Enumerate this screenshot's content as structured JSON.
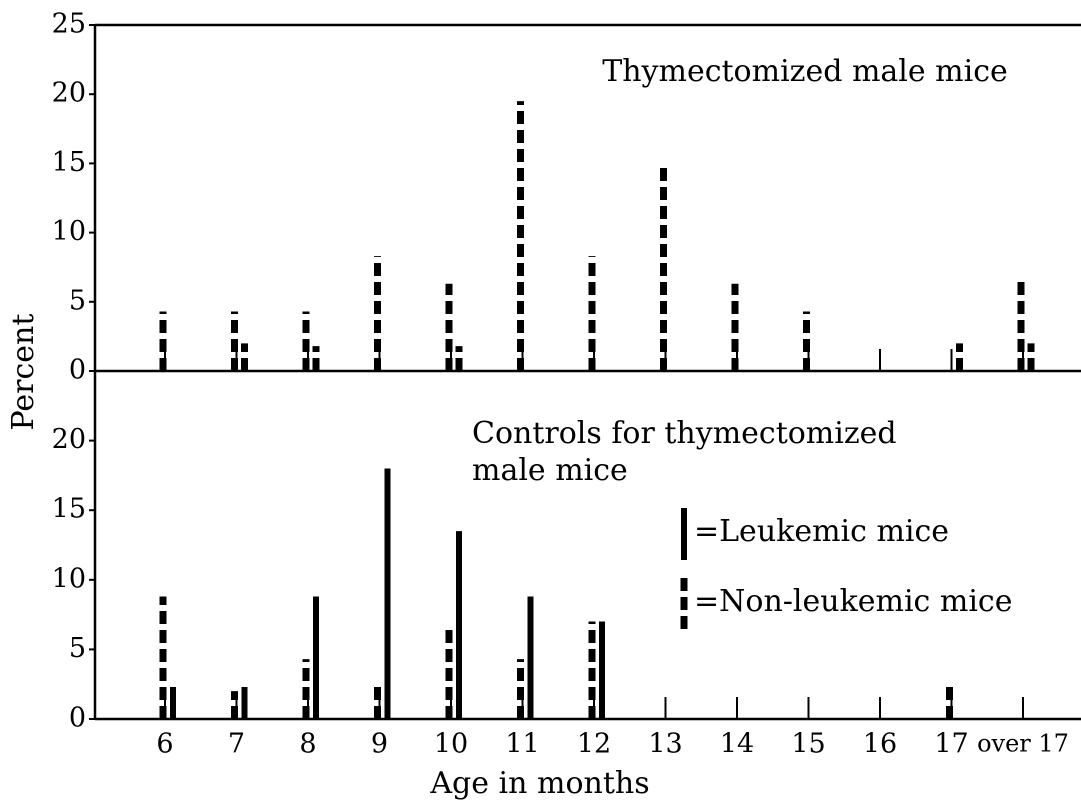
{
  "chart_data": [
    {
      "type": "bar",
      "title": "Thymectomized male mice",
      "ylim": [
        0,
        25
      ],
      "yticks": [
        0,
        5,
        10,
        15,
        20,
        25
      ],
      "series": [
        {
          "style": "dashed",
          "color": "#000000",
          "values": [
            4.3,
            4.3,
            4.3,
            8.3,
            6.3,
            19.5,
            8.3,
            15,
            6.3,
            4.3,
            null,
            null,
            6.5
          ]
        },
        {
          "style": "dashed",
          "color": "#000000",
          "values": [
            null,
            2,
            1.8,
            null,
            1.8,
            null,
            null,
            null,
            null,
            null,
            null,
            2,
            2
          ]
        }
      ]
    },
    {
      "type": "bar",
      "title": [
        "Controls for thymectomized",
        "male mice"
      ],
      "x_label": "Age in months",
      "y_label": "Percent",
      "categories": [
        "6",
        "7",
        "8",
        "9",
        "10",
        "11",
        "12",
        "13",
        "14",
        "15",
        "16",
        "17",
        "over 17"
      ],
      "ylim": [
        0,
        25
      ],
      "yticks": [
        0,
        5,
        10,
        15,
        20
      ],
      "series": [
        {
          "name": "=Non-leukemic mice",
          "style": "dashed",
          "color": "#000000",
          "values": [
            8.8,
            2,
            4.3,
            2.3,
            6.8,
            4.3,
            7,
            null,
            null,
            null,
            null,
            2.3,
            null
          ]
        },
        {
          "name": "=Leukemic mice",
          "style": "solid",
          "color": "#000000",
          "values": [
            2.3,
            2.3,
            8.8,
            18,
            13.5,
            8.8,
            7,
            null,
            null,
            null,
            null,
            null,
            null
          ]
        }
      ]
    }
  ]
}
